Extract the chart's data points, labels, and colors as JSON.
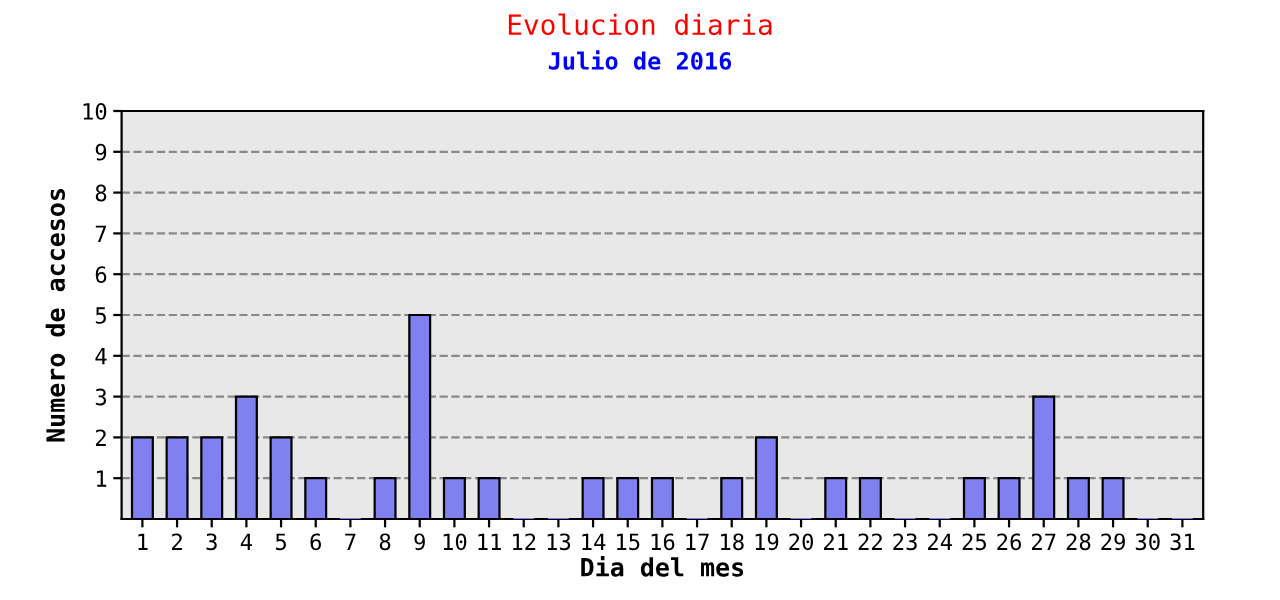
{
  "chart_data": {
    "type": "bar",
    "title": "Evolucion diaria",
    "subtitle": "Julio de 2016",
    "xlabel": "Dia del mes",
    "ylabel": "Numero de accesos",
    "categories": [
      "1",
      "2",
      "3",
      "4",
      "5",
      "6",
      "7",
      "8",
      "9",
      "10",
      "11",
      "12",
      "13",
      "14",
      "15",
      "16",
      "17",
      "18",
      "19",
      "20",
      "21",
      "22",
      "23",
      "24",
      "25",
      "26",
      "27",
      "28",
      "29",
      "30",
      "31"
    ],
    "values": [
      2,
      2,
      2,
      3,
      2,
      1,
      0,
      1,
      5,
      1,
      1,
      0,
      0,
      1,
      1,
      1,
      0,
      1,
      2,
      0,
      1,
      1,
      0,
      0,
      1,
      1,
      3,
      1,
      1,
      0,
      0
    ],
    "color": "#8080f0",
    "ylim": [
      0,
      10
    ],
    "yticks": [
      1,
      2,
      3,
      4,
      5,
      6,
      7,
      8,
      9,
      10
    ],
    "grid": "y",
    "line_style": "dashed"
  }
}
